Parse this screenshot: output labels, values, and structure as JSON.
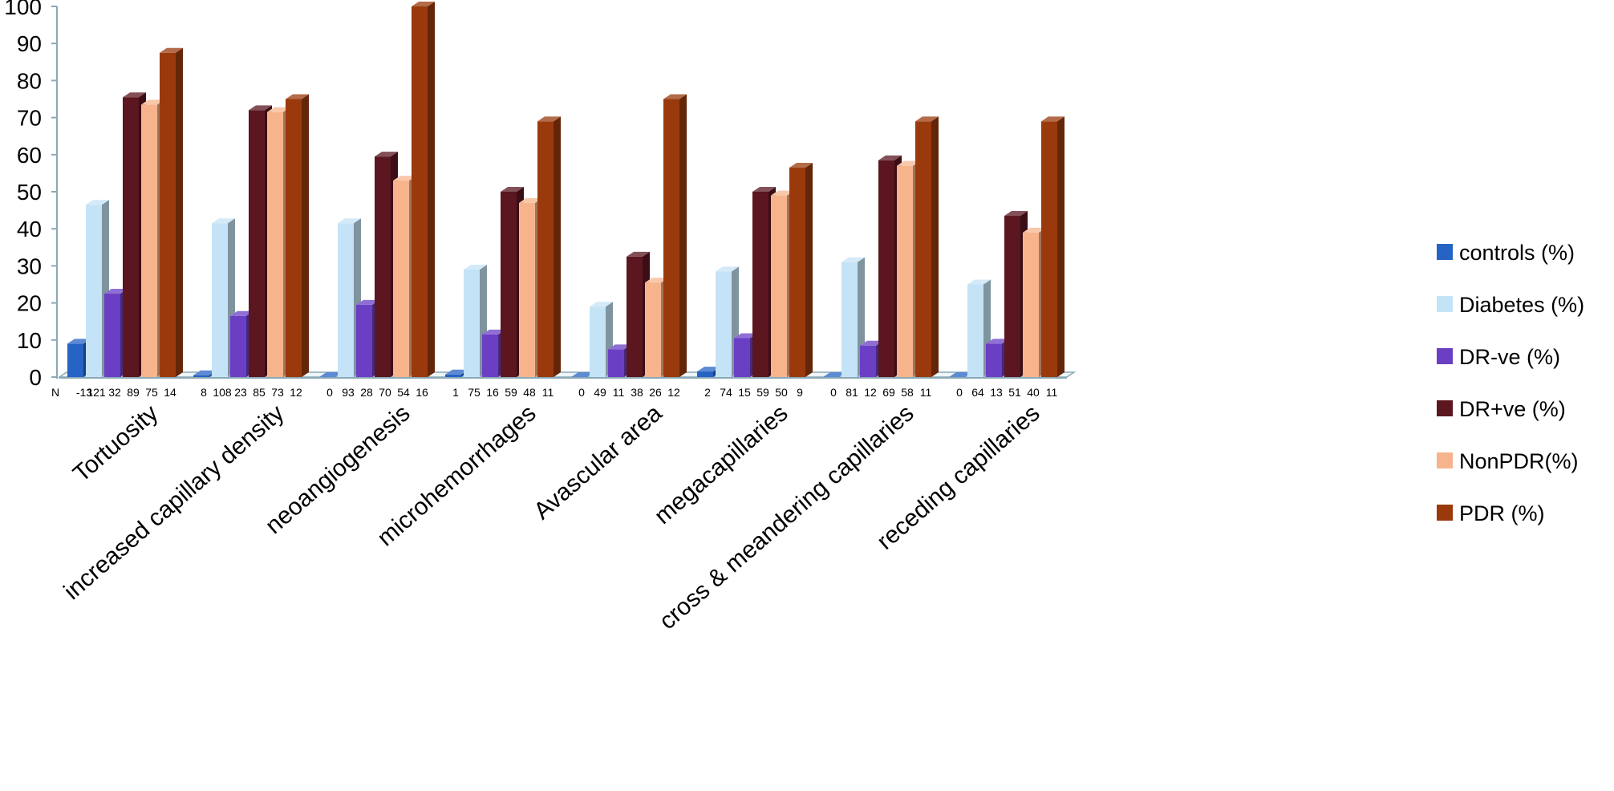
{
  "chart_data": {
    "type": "bar",
    "title": "",
    "xlabel": "",
    "ylabel": "",
    "ylim": [
      0,
      100
    ],
    "y_ticks": [
      "0",
      "10",
      "20",
      "30",
      "40",
      "50",
      "60",
      "70",
      "80",
      "90",
      "100"
    ],
    "grid": false,
    "legend_position": "right",
    "style": "3d-clustered-column",
    "categories": [
      "Tortuosity",
      "increased capillary density",
      "neoangiogenesis",
      "microhemorrhages",
      "Avascular area",
      "megacapillaries",
      "cross & meandering capillaries",
      "receding capillaries"
    ],
    "series": [
      {
        "name": "controls (%)",
        "color": "#2563c4",
        "values": [
          9,
          0.5,
          0,
          0.7,
          0,
          1.5,
          0,
          0
        ]
      },
      {
        "name": "Diabetes  (%)",
        "color": "#c5e3f6",
        "values": [
          46.5,
          41.5,
          41.5,
          29,
          19,
          28.5,
          31,
          25
        ]
      },
      {
        "name": "DR-ve (%)",
        "color": "#6a3fc4",
        "values": [
          22.5,
          16.5,
          19.5,
          11.5,
          7.5,
          10.5,
          8.5,
          9
        ]
      },
      {
        "name": "DR+ve (%)",
        "color": "#5b1620",
        "values": [
          75.5,
          72,
          59.5,
          50,
          32.5,
          50,
          58.5,
          43.5
        ]
      },
      {
        "name": "NonPDR(%)",
        "color": "#f7b48c",
        "values": [
          73.5,
          71.5,
          53,
          47,
          25.5,
          49,
          57,
          39
        ]
      },
      {
        "name": "PDR  (%)",
        "color": "#9a3a0c",
        "values": [
          87.5,
          75,
          100,
          69,
          75,
          56.5,
          69,
          69
        ]
      }
    ],
    "n_row_prefix": "N",
    "n_labels": [
      [
        "-13",
        "121",
        "32",
        "89",
        "75",
        "14"
      ],
      [
        "8",
        "108",
        "23",
        "85",
        "73",
        "12"
      ],
      [
        "0",
        "93",
        "28",
        "70",
        "54",
        "16"
      ],
      [
        "1",
        "75",
        "16",
        "59",
        "48",
        "11"
      ],
      [
        "0",
        "49",
        "11",
        "38",
        "26",
        "12"
      ],
      [
        "2",
        "74",
        "15",
        "59",
        "50",
        "9"
      ],
      [
        "0",
        "81",
        "12",
        "69",
        "58",
        "11"
      ],
      [
        "0",
        "64",
        "13",
        "51",
        "40",
        "11"
      ]
    ]
  }
}
